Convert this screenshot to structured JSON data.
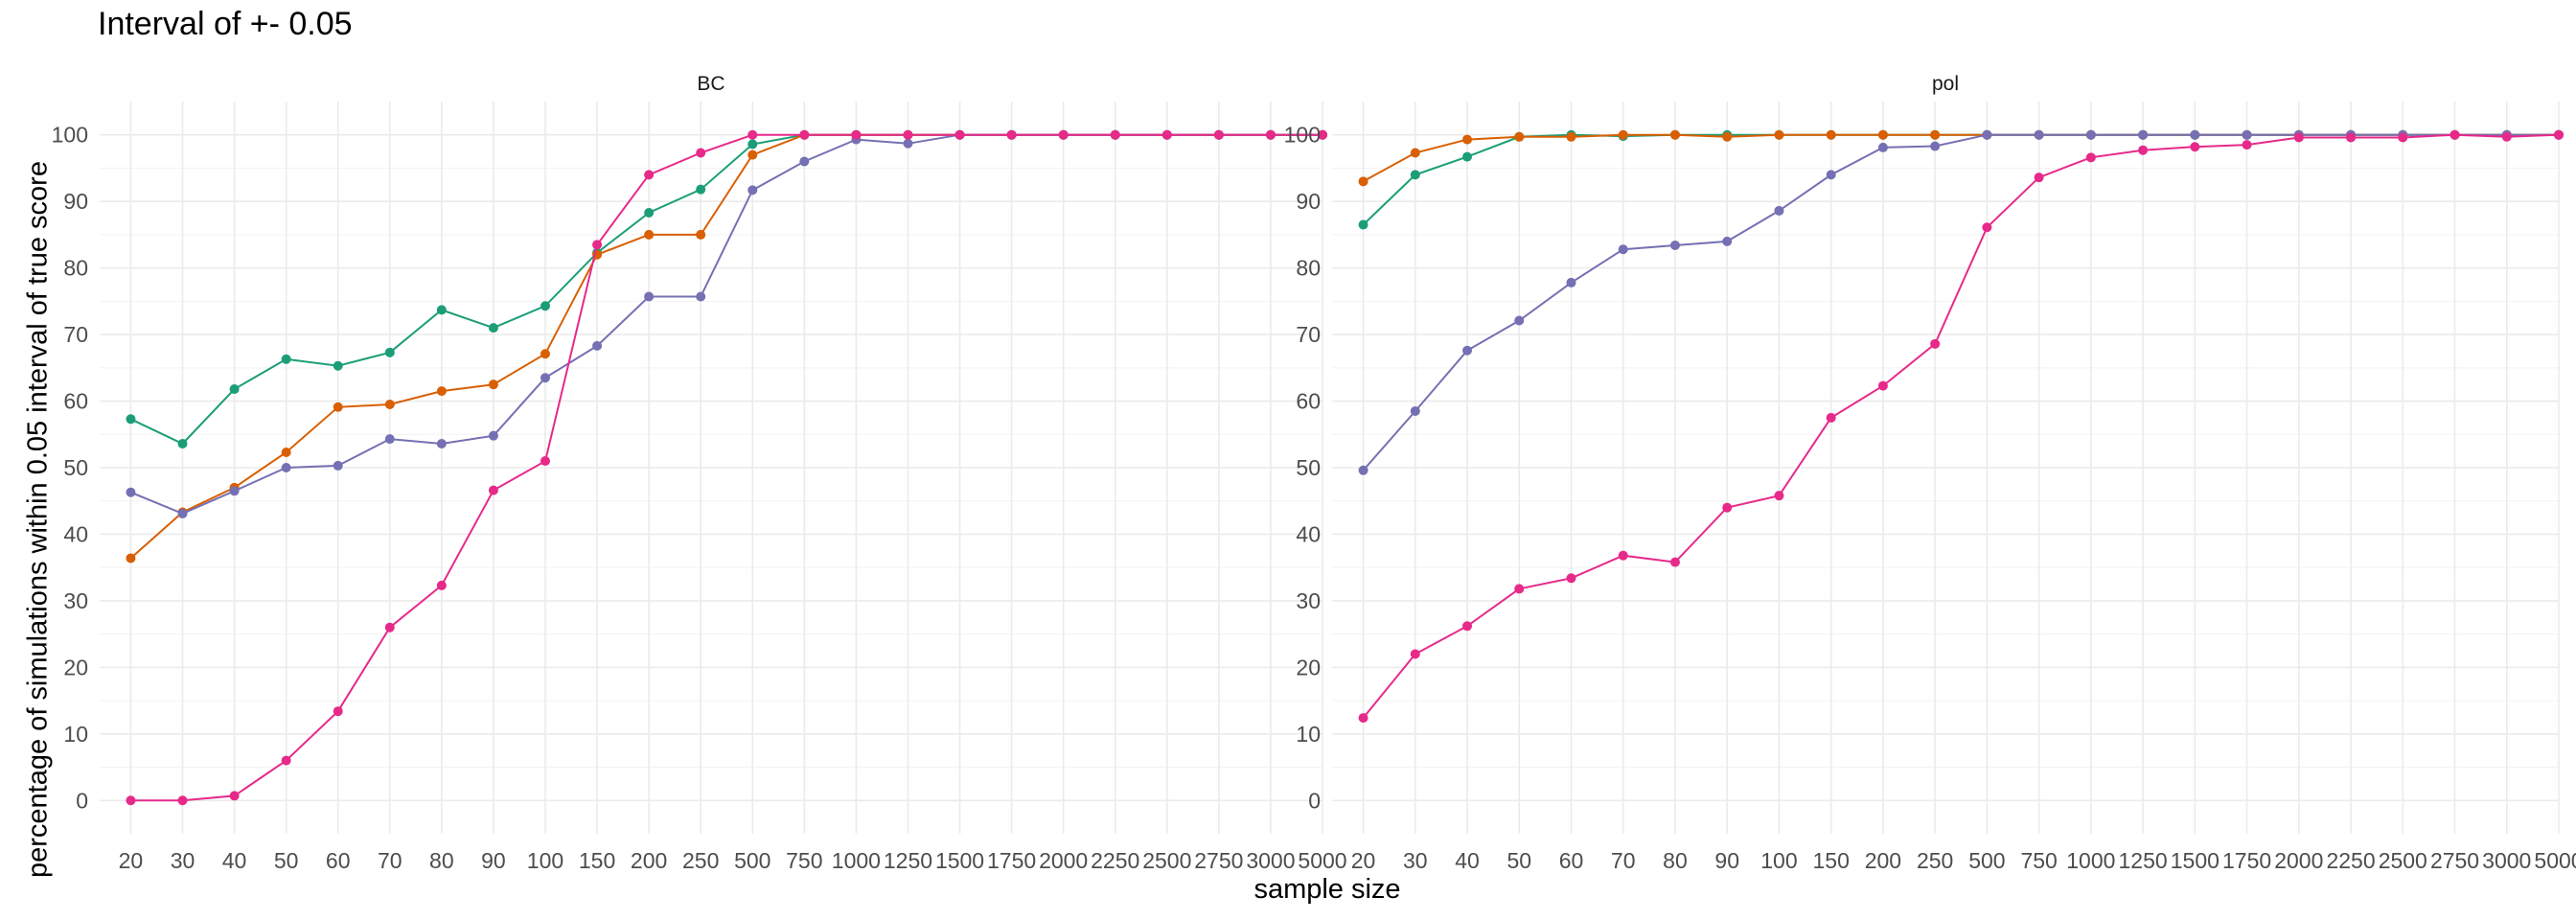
{
  "title": "Interval of +- 0.05",
  "axis": {
    "xlabel": "sample size",
    "ylabel": "percentage of simulations within 0.05 interval of true score"
  },
  "colors": {
    "series": [
      "#1b9e77",
      "#d95f02",
      "#7570b3",
      "#e7298a"
    ],
    "grid": "#ebebeb",
    "tick_text": "#4d4d4d",
    "strip_text": "#1a1a1a"
  },
  "chart_data": {
    "type": "line",
    "x": [
      "20",
      "30",
      "40",
      "50",
      "60",
      "70",
      "80",
      "90",
      "100",
      "150",
      "200",
      "250",
      "500",
      "750",
      "1000",
      "1250",
      "1500",
      "1750",
      "2000",
      "2250",
      "2500",
      "2750",
      "3000",
      "5000"
    ],
    "ylim": [
      -5,
      105
    ],
    "yticks": [
      0,
      10,
      20,
      30,
      40,
      50,
      60,
      70,
      80,
      90,
      100
    ],
    "grid": true,
    "legend": "none",
    "panels": [
      {
        "label": "BC",
        "series": [
          {
            "values": [
              57.3,
              53.6,
              61.8,
              66.3,
              65.3,
              67.3,
              73.7,
              71.0,
              74.3,
              82.3,
              88.3,
              91.8,
              98.6,
              100,
              100,
              100,
              100,
              100,
              100,
              100,
              100,
              100,
              100,
              100
            ]
          },
          {
            "values": [
              36.4,
              43.3,
              47.0,
              52.3,
              59.1,
              59.5,
              61.5,
              62.5,
              67.1,
              82.0,
              85.0,
              85.0,
              97.0,
              100,
              100,
              100,
              100,
              100,
              100,
              100,
              100,
              100,
              100,
              100
            ]
          },
          {
            "values": [
              46.3,
              43.1,
              46.5,
              50.0,
              50.3,
              54.3,
              53.6,
              54.8,
              63.5,
              68.3,
              75.7,
              75.7,
              91.7,
              96.0,
              99.3,
              98.7,
              100,
              100,
              100,
              100,
              100,
              100,
              100,
              100
            ]
          },
          {
            "values": [
              0.0,
              0.0,
              0.7,
              6.0,
              13.4,
              26.0,
              32.3,
              46.6,
              51.0,
              83.5,
              94.0,
              97.3,
              100,
              100,
              100,
              100,
              100,
              100,
              100,
              100,
              100,
              100,
              100,
              100
            ]
          }
        ]
      },
      {
        "label": "pol",
        "series": [
          {
            "values": [
              86.5,
              94.0,
              96.7,
              99.7,
              100,
              99.8,
              100,
              100,
              100,
              100,
              100,
              100,
              100,
              100,
              100,
              100,
              100,
              100,
              100,
              100,
              100,
              100,
              100,
              100
            ]
          },
          {
            "values": [
              93.0,
              97.3,
              99.3,
              99.7,
              99.7,
              100,
              100,
              99.7,
              100,
              100,
              100,
              100,
              100,
              100,
              100,
              100,
              100,
              100,
              100,
              100,
              100,
              100,
              100,
              100
            ]
          },
          {
            "values": [
              49.6,
              58.5,
              67.6,
              72.1,
              77.8,
              82.8,
              83.4,
              84.0,
              88.6,
              94.0,
              98.1,
              98.3,
              100,
              100,
              100,
              100,
              100,
              100,
              100,
              100,
              100,
              100,
              100,
              100
            ]
          },
          {
            "values": [
              12.4,
              22.0,
              26.2,
              31.8,
              33.4,
              36.8,
              35.8,
              44.0,
              45.8,
              57.5,
              62.3,
              68.6,
              86.1,
              93.6,
              96.6,
              97.7,
              98.2,
              98.5,
              99.6,
              99.6,
              99.6,
              100,
              99.7,
              100
            ]
          }
        ]
      }
    ]
  }
}
